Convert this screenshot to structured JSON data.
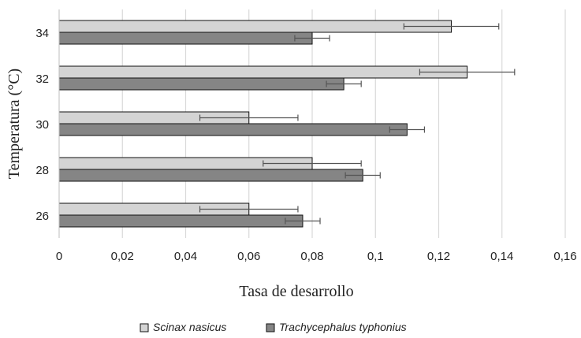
{
  "chart_data": {
    "type": "bar",
    "orientation": "horizontal",
    "categories": [
      "26",
      "28",
      "30",
      "32",
      "34"
    ],
    "series": [
      {
        "name": "Scinax nasicus",
        "values": [
          0.06,
          0.08,
          0.06,
          0.129,
          0.124
        ],
        "errors": [
          0.0155,
          0.0155,
          0.0155,
          0.015,
          0.015
        ],
        "color": "#d4d4d4"
      },
      {
        "name": "Trachycephalus typhonius",
        "values": [
          0.077,
          0.096,
          0.11,
          0.09,
          0.08
        ],
        "errors": [
          0.0055,
          0.0055,
          0.0055,
          0.0055,
          0.0055
        ],
        "color": "#858585"
      }
    ],
    "xlabel": "Tasa de desarrollo",
    "ylabel": "Temperatura (°C)",
    "xlim": [
      0,
      0.16
    ],
    "x_ticks": [
      "0",
      "0,02",
      "0,04",
      "0,06",
      "0,08",
      "0,1",
      "0,12",
      "0,14",
      "0,16"
    ],
    "grid": "vertical",
    "legend_position": "bottom"
  }
}
